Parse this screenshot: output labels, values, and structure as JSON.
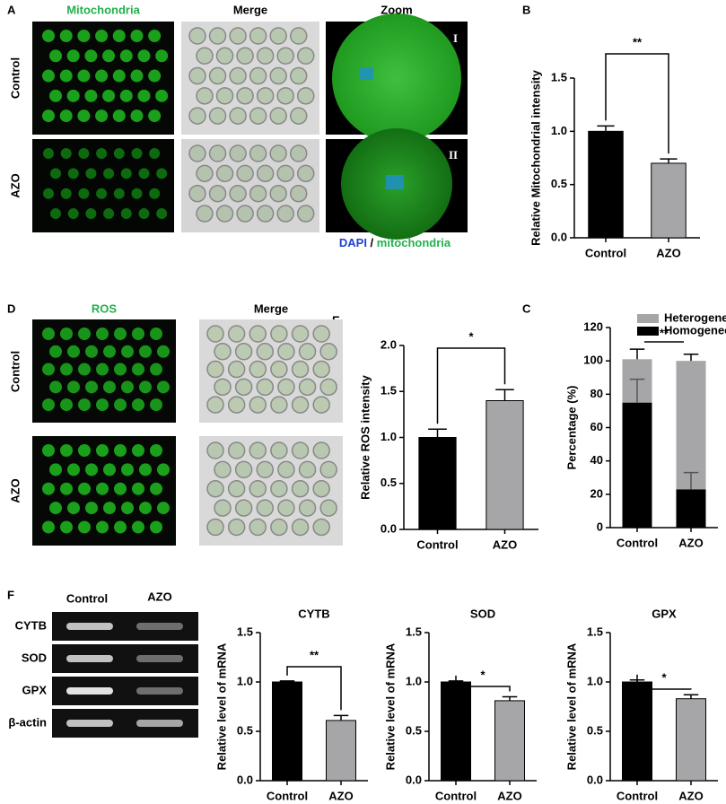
{
  "figure": {
    "panel_labels": [
      "A",
      "B",
      "C",
      "D",
      "E",
      "F"
    ],
    "a_headers": [
      "Mitochondria",
      "Merge",
      "Zoom"
    ],
    "a_rows": [
      "Control",
      "AZO"
    ],
    "a_zoom_marks": [
      "I",
      "II"
    ],
    "a_legend": [
      "DAPI",
      "/",
      "mitochondria"
    ],
    "d_headers": [
      "ROS",
      "Merge"
    ],
    "d_rows": [
      "Control",
      "AZO"
    ],
    "gel_columns": [
      "Control",
      "AZO"
    ],
    "gel_rows": [
      "CYTB",
      "SOD",
      "GPX",
      "β-actin"
    ]
  },
  "chart_data": [
    {
      "type": "bar",
      "ylabel": "Relative Mitochondrial intensity",
      "categories": [
        "Control",
        "AZO"
      ],
      "values": [
        1.0,
        0.7
      ],
      "errors": [
        0.05,
        0.04
      ],
      "colors": [
        "#000000",
        "#a6a6a9"
      ],
      "ylim": [
        0,
        1.5
      ],
      "yticks": [
        {
          "value": 0,
          "label": "0.0"
        },
        {
          "value": 0.5,
          "label": "0.5"
        },
        {
          "value": 1,
          "label": "1.0"
        },
        {
          "value": 1.5,
          "label": "1.5"
        }
      ],
      "annotation": "**"
    },
    {
      "type": "bar",
      "ylabel": "Relative ROS intensity",
      "categories": [
        "Control",
        "AZO"
      ],
      "values": [
        1.0,
        1.4
      ],
      "errors": [
        0.09,
        0.12
      ],
      "colors": [
        "#000000",
        "#a6a6a9"
      ],
      "ylim": [
        0,
        2
      ],
      "yticks": [
        {
          "value": 0,
          "label": "0.0"
        },
        {
          "value": 0.5,
          "label": "0.5"
        },
        {
          "value": 1,
          "label": "1.0"
        },
        {
          "value": 1.5,
          "label": "1.5"
        },
        {
          "value": 2,
          "label": "2.0"
        }
      ],
      "annotation": "*"
    },
    {
      "type": "stacked_bar",
      "ylabel": "Percentage (%)",
      "categories": [
        "Control",
        "AZO"
      ],
      "series": [
        {
          "name": "Homogeneous",
          "color": "#000000",
          "values": [
            75,
            23
          ],
          "errors": [
            14,
            10
          ]
        },
        {
          "name": "Heterogeneous",
          "color": "#a6a6a9",
          "values": [
            26,
            77
          ],
          "errors": [
            6,
            4
          ]
        }
      ],
      "ylim": [
        0,
        120
      ],
      "yticks": [
        0,
        20,
        40,
        60,
        80,
        100,
        120
      ],
      "annotation": "**"
    },
    {
      "type": "bar",
      "title": "CYTB",
      "ylabel": "Relative level of mRNA",
      "categories": [
        "Control",
        "AZO"
      ],
      "values": [
        1.0,
        0.61
      ],
      "errors": [
        0.01,
        0.05
      ],
      "colors": [
        "#000000",
        "#a6a6a9"
      ],
      "ylim": [
        0,
        1.5
      ],
      "yticks": [
        {
          "value": 0,
          "label": "0.0"
        },
        {
          "value": 0.5,
          "label": "0.5"
        },
        {
          "value": 1,
          "label": "1.0"
        },
        {
          "value": 1.5,
          "label": "1.5"
        }
      ],
      "annotation": "**"
    },
    {
      "type": "bar",
      "title": "SOD",
      "ylabel": "Relative level of mRNA",
      "categories": [
        "Control",
        "AZO"
      ],
      "values": [
        1.0,
        0.81
      ],
      "errors": [
        0.01,
        0.04
      ],
      "colors": [
        "#000000",
        "#a6a6a9"
      ],
      "ylim": [
        0,
        1.5
      ],
      "yticks": [
        {
          "value": 0,
          "label": "0.0"
        },
        {
          "value": 0.5,
          "label": "0.5"
        },
        {
          "value": 1,
          "label": "1.0"
        },
        {
          "value": 1.5,
          "label": "1.5"
        }
      ],
      "annotation": "*"
    },
    {
      "type": "bar",
      "title": "GPX",
      "ylabel": "Relative level of mRNA",
      "categories": [
        "Control",
        "AZO"
      ],
      "values": [
        1.0,
        0.83
      ],
      "errors": [
        0.02,
        0.04
      ],
      "colors": [
        "#000000",
        "#a6a6a9"
      ],
      "ylim": [
        0,
        1.5
      ],
      "yticks": [
        {
          "value": 0,
          "label": "0.0"
        },
        {
          "value": 0.5,
          "label": "0.5"
        },
        {
          "value": 1,
          "label": "1.0"
        },
        {
          "value": 1.5,
          "label": "1.5"
        }
      ],
      "annotation": "*"
    }
  ]
}
